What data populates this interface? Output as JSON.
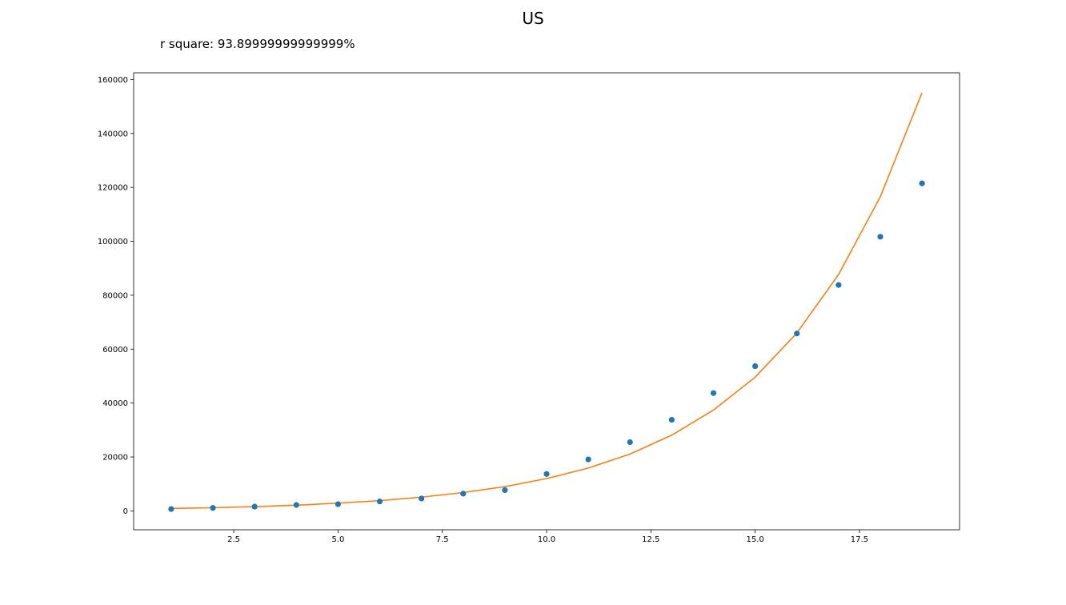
{
  "chart_data": {
    "type": "scatter",
    "title": "US",
    "annotation": "r square: 93.89999999999999%",
    "xlabel": "",
    "ylabel": "",
    "xlim": [
      0.1,
      19.9
    ],
    "ylim": [
      -7000,
      162500
    ],
    "xticks": [
      2.5,
      5.0,
      7.5,
      10.0,
      12.5,
      15.0,
      17.5
    ],
    "xtick_labels": [
      "2.5",
      "5.0",
      "7.5",
      "10.0",
      "12.5",
      "15.0",
      "17.5"
    ],
    "yticks": [
      0,
      20000,
      40000,
      60000,
      80000,
      100000,
      120000,
      140000,
      160000
    ],
    "ytick_labels": [
      "0",
      "20000",
      "40000",
      "60000",
      "80000",
      "100000",
      "120000",
      "140000",
      "160000"
    ],
    "grid": false,
    "series": [
      {
        "kind": "scatter",
        "color": "#1f77b4",
        "x": [
          1,
          2,
          3,
          4,
          5,
          6,
          7,
          8,
          9,
          10,
          11,
          12,
          13,
          14,
          15,
          16,
          17,
          18,
          19
        ],
        "y": [
          700,
          1100,
          1600,
          2200,
          2500,
          3500,
          4600,
          6400,
          7700,
          13700,
          19100,
          25500,
          33800,
          43700,
          53700,
          65800,
          83800,
          101700,
          121500
        ]
      },
      {
        "kind": "line",
        "color": "#ff7f0e",
        "x": [
          1,
          2,
          3,
          4,
          5,
          6,
          7,
          8,
          9,
          10,
          11,
          12,
          13,
          14,
          15,
          16,
          17,
          18,
          19
        ],
        "y": [
          900,
          1200,
          1600,
          2100,
          2900,
          3800,
          5100,
          6800,
          9000,
          12000,
          15900,
          21100,
          28100,
          37400,
          49600,
          66000,
          87700,
          116500,
          155100
        ]
      }
    ]
  }
}
